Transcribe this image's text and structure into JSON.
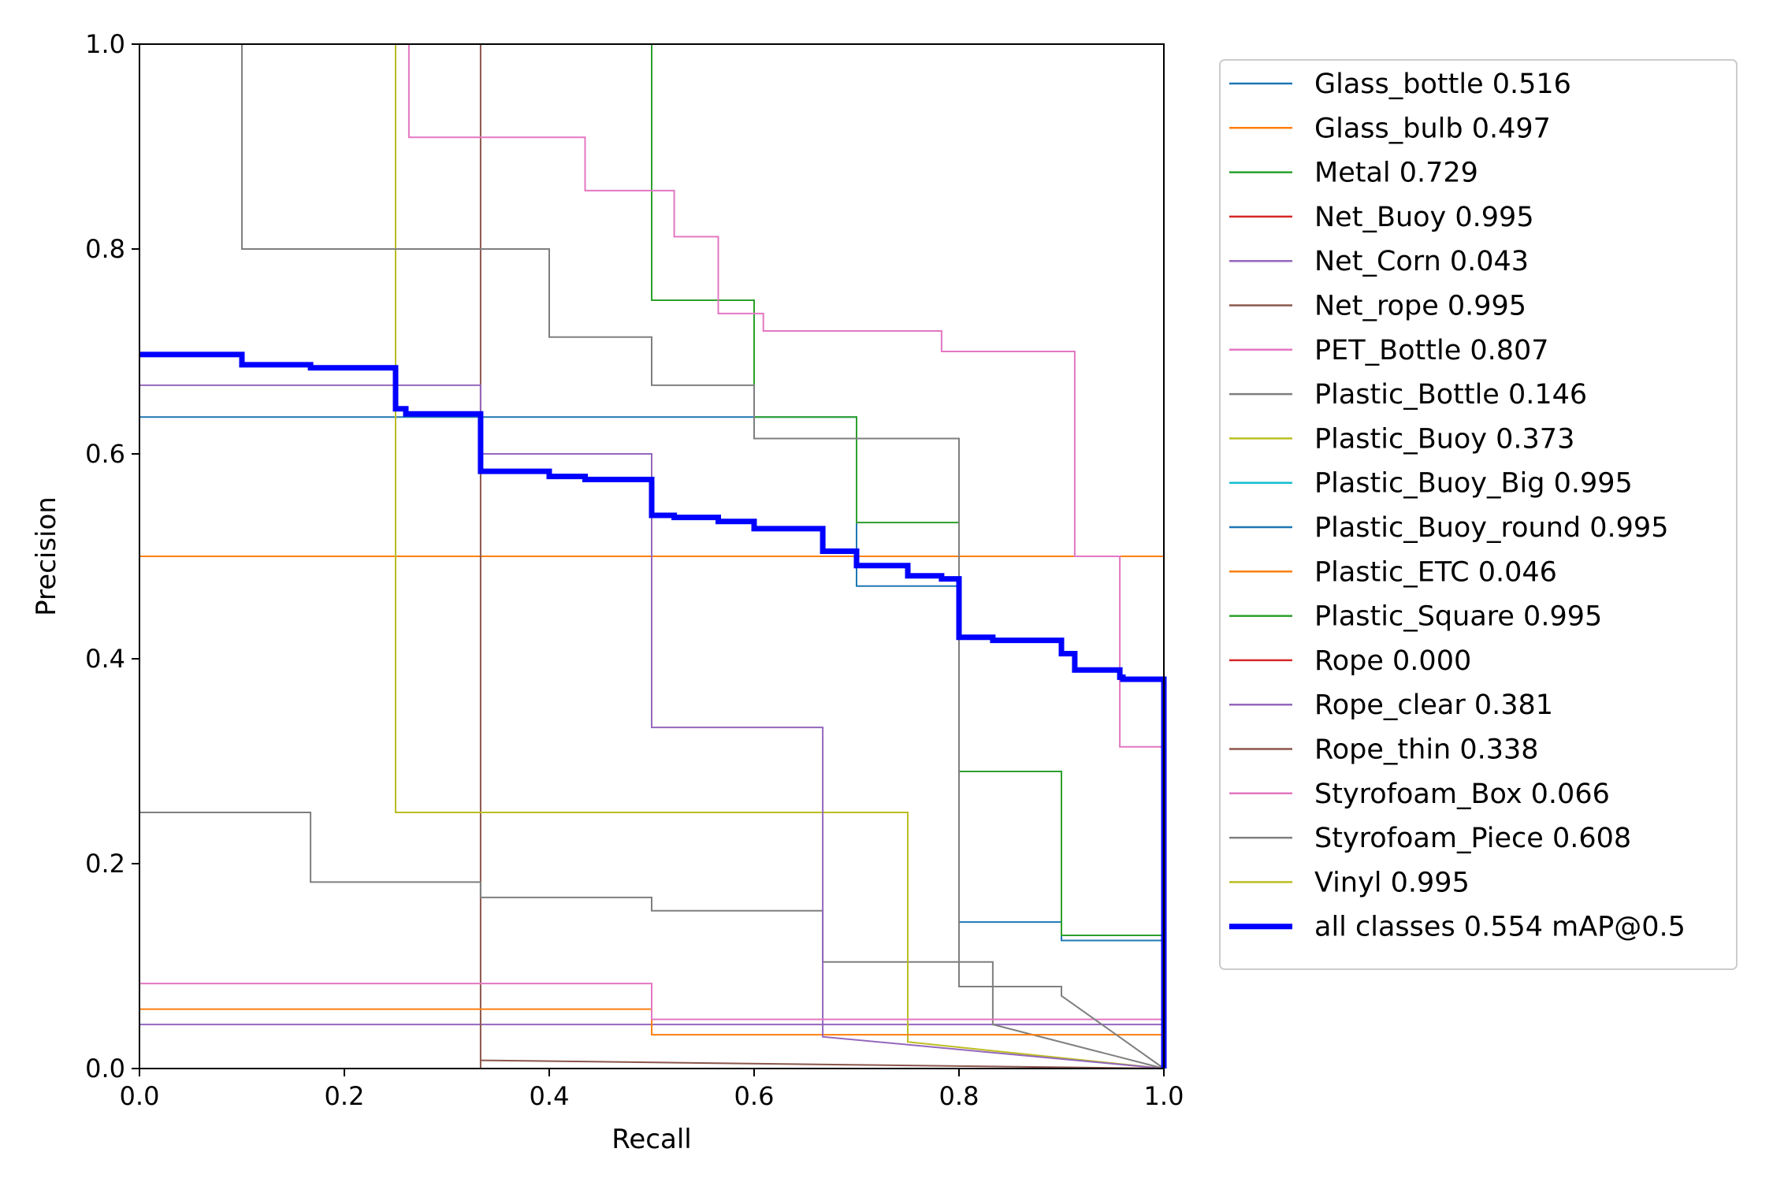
{
  "chart_data": {
    "type": "line",
    "title": "",
    "xlabel": "Recall",
    "ylabel": "Precision",
    "xlim": [
      0,
      1
    ],
    "ylim": [
      0,
      1
    ],
    "xticks": [
      "0.0",
      "0.2",
      "0.4",
      "0.6",
      "0.8",
      "1.0"
    ],
    "yticks": [
      "0.0",
      "0.2",
      "0.4",
      "0.6",
      "0.8",
      "1.0"
    ],
    "grid": false,
    "legend_position": "outside-right",
    "series": [
      {
        "name": "Glass_bottle 0.516",
        "color": "#1f77b4",
        "width": 2,
        "points": [
          [
            0,
            0.636
          ],
          [
            0.7,
            0.636
          ],
          [
            0.7,
            0.471
          ],
          [
            0.8,
            0.471
          ],
          [
            0.8,
            0.143
          ],
          [
            0.9,
            0.143
          ],
          [
            0.9,
            0.125
          ],
          [
            1,
            0.125
          ],
          [
            1,
            0
          ]
        ]
      },
      {
        "name": "Glass_bulb 0.497",
        "color": "#ff7f0e",
        "width": 2,
        "points": [
          [
            0,
            0.5
          ],
          [
            1,
            0.5
          ],
          [
            1,
            0
          ]
        ]
      },
      {
        "name": "Metal 0.729",
        "color": "#2ca02c",
        "width": 2,
        "points": [
          [
            0.5,
            1.0
          ],
          [
            0.5,
            0.75
          ],
          [
            0.6,
            0.75
          ],
          [
            0.6,
            0.636
          ],
          [
            0.7,
            0.636
          ],
          [
            0.7,
            0.533
          ],
          [
            0.8,
            0.533
          ],
          [
            0.8,
            0.29
          ],
          [
            0.9,
            0.29
          ],
          [
            0.9,
            0.13
          ],
          [
            1,
            0.13
          ],
          [
            1,
            0
          ]
        ]
      },
      {
        "name": "Net_Buoy 0.995",
        "color": "#d62728",
        "width": 2,
        "points": [
          [
            1,
            1
          ],
          [
            1,
            0
          ]
        ]
      },
      {
        "name": "Net_Corn 0.043",
        "color": "#9467bd",
        "width": 2,
        "points": [
          [
            0,
            0.043
          ],
          [
            1,
            0.043
          ],
          [
            1,
            0
          ]
        ]
      },
      {
        "name": "Net_rope 0.995",
        "color": "#8c564b",
        "width": 2,
        "points": [
          [
            0.333,
            1.0
          ],
          [
            0.333,
            0
          ]
        ]
      },
      {
        "name": "PET_Bottle 0.807",
        "color": "#e377c2",
        "width": 2,
        "points": [
          [
            0.263,
            1.0
          ],
          [
            0.263,
            0.909
          ],
          [
            0.435,
            0.909
          ],
          [
            0.435,
            0.857
          ],
          [
            0.522,
            0.857
          ],
          [
            0.522,
            0.812
          ],
          [
            0.565,
            0.812
          ],
          [
            0.565,
            0.737
          ],
          [
            0.609,
            0.737
          ],
          [
            0.609,
            0.72
          ],
          [
            0.783,
            0.72
          ],
          [
            0.783,
            0.7
          ],
          [
            0.913,
            0.7
          ],
          [
            0.913,
            0.5
          ],
          [
            0.957,
            0.5
          ],
          [
            0.957,
            0.314
          ],
          [
            1,
            0.314
          ],
          [
            1,
            0
          ]
        ]
      },
      {
        "name": "Plastic_Bottle 0.146",
        "color": "#7f7f7f",
        "width": 2,
        "points": [
          [
            0,
            0.25
          ],
          [
            0.167,
            0.25
          ],
          [
            0.167,
            0.182
          ],
          [
            0.333,
            0.182
          ],
          [
            0.333,
            0.167
          ],
          [
            0.5,
            0.167
          ],
          [
            0.5,
            0.154
          ],
          [
            0.667,
            0.154
          ],
          [
            0.667,
            0.104
          ],
          [
            0.833,
            0.104
          ],
          [
            0.833,
            0.043
          ],
          [
            1,
            0
          ]
        ]
      },
      {
        "name": "Plastic_Buoy 0.373",
        "color": "#bcbd22",
        "width": 2,
        "points": [
          [
            0.25,
            1.0
          ],
          [
            0.25,
            0.25
          ],
          [
            0.75,
            0.25
          ],
          [
            0.75,
            0.026
          ],
          [
            1,
            0
          ]
        ]
      },
      {
        "name": "Plastic_Buoy_Big 0.995",
        "color": "#17becf",
        "width": 2,
        "points": [
          [
            1,
            1
          ],
          [
            1,
            0
          ]
        ]
      },
      {
        "name": "Plastic_Buoy_round 0.995",
        "color": "#1f77b4",
        "width": 2,
        "points": [
          [
            1,
            1
          ],
          [
            1,
            0
          ]
        ]
      },
      {
        "name": "Plastic_ETC 0.046",
        "color": "#ff7f0e",
        "width": 2,
        "points": [
          [
            0,
            0.058
          ],
          [
            0.5,
            0.058
          ],
          [
            0.5,
            0.033
          ],
          [
            1,
            0.033
          ],
          [
            1,
            0
          ]
        ]
      },
      {
        "name": "Plastic_Square 0.995",
        "color": "#2ca02c",
        "width": 2,
        "points": [
          [
            1,
            1
          ],
          [
            1,
            0
          ]
        ]
      },
      {
        "name": "Rope 0.000",
        "color": "#d62728",
        "width": 2,
        "points": [
          [
            0,
            0
          ],
          [
            1,
            0
          ]
        ]
      },
      {
        "name": "Rope_clear 0.381",
        "color": "#9467bd",
        "width": 2,
        "points": [
          [
            0,
            0.667
          ],
          [
            0.333,
            0.667
          ],
          [
            0.333,
            0.6
          ],
          [
            0.5,
            0.6
          ],
          [
            0.5,
            0.333
          ],
          [
            0.667,
            0.333
          ],
          [
            0.667,
            0.031
          ],
          [
            1,
            0
          ]
        ]
      },
      {
        "name": "Rope_thin 0.338",
        "color": "#8c564b",
        "width": 2,
        "points": [
          [
            0.333,
            0.008
          ],
          [
            1,
            0
          ]
        ]
      },
      {
        "name": "Styrofoam_Box 0.066",
        "color": "#e377c2",
        "width": 2,
        "points": [
          [
            0,
            0.083
          ],
          [
            0.5,
            0.083
          ],
          [
            0.5,
            0.048
          ],
          [
            1,
            0.048
          ],
          [
            1,
            0
          ]
        ]
      },
      {
        "name": "Styrofoam_Piece 0.608",
        "color": "#7f7f7f",
        "width": 2,
        "points": [
          [
            0.1,
            1.0
          ],
          [
            0.1,
            0.8
          ],
          [
            0.4,
            0.8
          ],
          [
            0.4,
            0.714
          ],
          [
            0.5,
            0.714
          ],
          [
            0.5,
            0.667
          ],
          [
            0.6,
            0.667
          ],
          [
            0.6,
            0.615
          ],
          [
            0.8,
            0.615
          ],
          [
            0.8,
            0.08
          ],
          [
            0.9,
            0.08
          ],
          [
            0.9,
            0.071
          ],
          [
            1,
            0
          ]
        ]
      },
      {
        "name": "Vinyl 0.995",
        "color": "#bcbd22",
        "width": 2,
        "points": [
          [
            1,
            1
          ],
          [
            1,
            0
          ]
        ]
      },
      {
        "name": "all classes 0.554 mAP@0.5",
        "color": "#0000ff",
        "width": 7,
        "points": [
          [
            0,
            0.697
          ],
          [
            0.1,
            0.697
          ],
          [
            0.1,
            0.687
          ],
          [
            0.167,
            0.687
          ],
          [
            0.167,
            0.684
          ],
          [
            0.25,
            0.684
          ],
          [
            0.25,
            0.644
          ],
          [
            0.26,
            0.644
          ],
          [
            0.26,
            0.639
          ],
          [
            0.333,
            0.639
          ],
          [
            0.333,
            0.583
          ],
          [
            0.4,
            0.583
          ],
          [
            0.4,
            0.578
          ],
          [
            0.435,
            0.578
          ],
          [
            0.435,
            0.575
          ],
          [
            0.5,
            0.575
          ],
          [
            0.5,
            0.54
          ],
          [
            0.522,
            0.54
          ],
          [
            0.522,
            0.538
          ],
          [
            0.565,
            0.538
          ],
          [
            0.565,
            0.534
          ],
          [
            0.6,
            0.534
          ],
          [
            0.6,
            0.527
          ],
          [
            0.667,
            0.527
          ],
          [
            0.667,
            0.524
          ],
          [
            0.667,
            0.524
          ],
          [
            0.667,
            0.505
          ],
          [
            0.7,
            0.505
          ],
          [
            0.7,
            0.491
          ],
          [
            0.75,
            0.491
          ],
          [
            0.75,
            0.481
          ],
          [
            0.783,
            0.481
          ],
          [
            0.783,
            0.478
          ],
          [
            0.8,
            0.478
          ],
          [
            0.8,
            0.421
          ],
          [
            0.833,
            0.421
          ],
          [
            0.833,
            0.418
          ],
          [
            0.9,
            0.418
          ],
          [
            0.9,
            0.405
          ],
          [
            0.913,
            0.405
          ],
          [
            0.913,
            0.389
          ],
          [
            0.957,
            0.389
          ],
          [
            0.957,
            0.382
          ],
          [
            0.96,
            0.382
          ],
          [
            0.96,
            0.38
          ],
          [
            1,
            0.38
          ],
          [
            1,
            0
          ]
        ]
      }
    ]
  }
}
